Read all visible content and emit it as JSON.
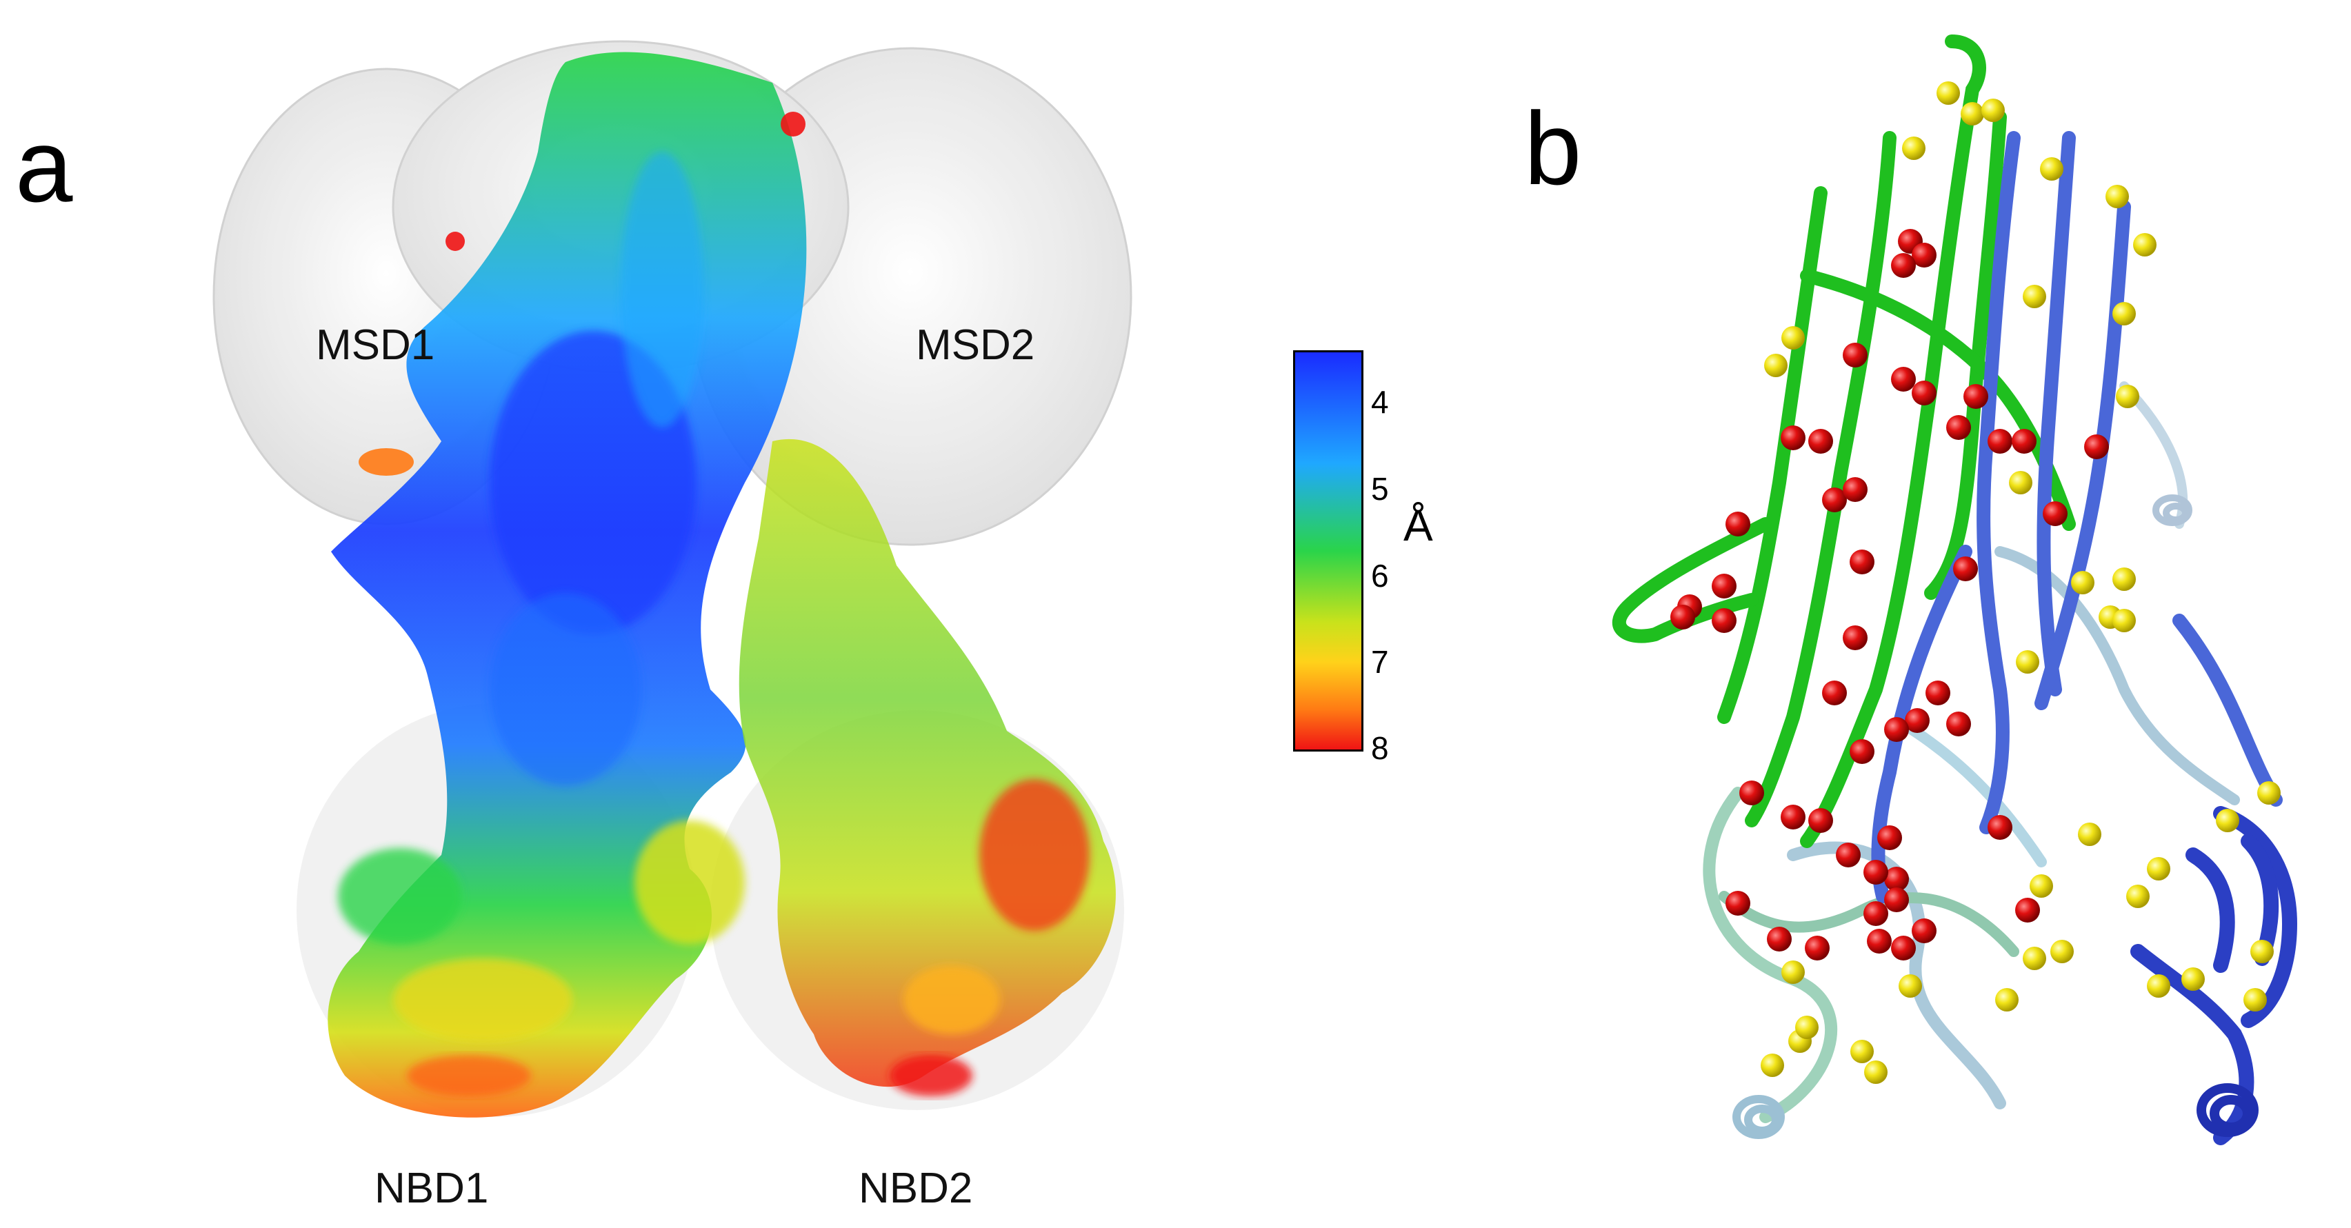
{
  "panel_a": {
    "letter": "a",
    "labels": {
      "msd1": "MSD1",
      "msd2": "MSD2",
      "nbd1": "NBD1",
      "nbd2": "NBD2"
    }
  },
  "colorbar": {
    "ticks": [
      "4",
      "5",
      "6",
      "7",
      "8"
    ],
    "unit": "Å",
    "range": [
      4,
      8
    ],
    "colors": [
      "#1a2cff",
      "#1fa8ff",
      "#2ad44a",
      "#c9e21b",
      "#ffd21a",
      "#ff7a14",
      "#f01414"
    ]
  },
  "panel_b": {
    "letter": "b"
  },
  "colors": {
    "helix_green": "#1fbf1f",
    "helix_blue": "#4a67d8",
    "helix_paleteal": "#7dbfa0",
    "helix_paleblue": "#9cc0d4",
    "sphere_red": "#e01010",
    "sphere_yellow": "#f2e418",
    "map_white": "#f1f1f1"
  }
}
